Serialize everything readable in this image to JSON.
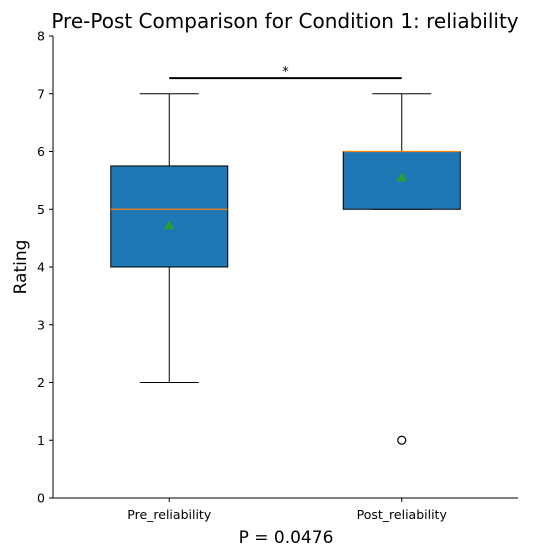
{
  "chart_data": {
    "type": "box",
    "title": "Pre-Post Comparison for Condition 1: reliability",
    "xlabel": "P = 0.0476",
    "ylabel": "Rating",
    "ylim": [
      0,
      8
    ],
    "yticks": [
      "0",
      "1",
      "2",
      "3",
      "4",
      "5",
      "6",
      "7",
      "8"
    ],
    "categories": [
      "Pre_reliability",
      "Post_reliability"
    ],
    "boxes": [
      {
        "name": "Pre_reliability",
        "whisker_low": 2,
        "q1": 4,
        "median": 5,
        "q3": 5.75,
        "whisker_high": 7,
        "mean": 4.72,
        "outliers": []
      },
      {
        "name": "Post_reliability",
        "whisker_low": 5,
        "q1": 5,
        "median": 6,
        "q3": 6,
        "whisker_high": 7,
        "mean": 5.55,
        "outliers": [
          1
        ]
      }
    ],
    "significance": {
      "label": "*",
      "level": 7.27
    },
    "colors": {
      "box": "#1f77b4",
      "median": "#ff7f0e",
      "mean": "#2ca02c",
      "line": "#000000"
    }
  }
}
